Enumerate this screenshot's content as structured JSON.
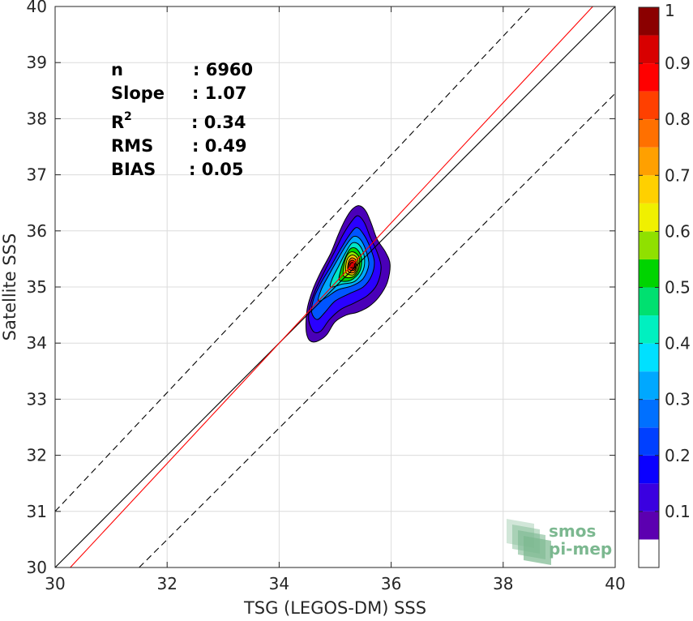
{
  "chart_data": {
    "type": "scatter",
    "xlabel": "TSG (LEGOS-DM) SSS",
    "ylabel": "Satellite SSS",
    "xlim": [
      30,
      40
    ],
    "ylim": [
      30,
      40
    ],
    "xticks": [
      30,
      32,
      34,
      36,
      38,
      40
    ],
    "yticks": [
      30,
      31,
      32,
      33,
      34,
      35,
      36,
      37,
      38,
      39,
      40
    ],
    "grid": true,
    "stats": [
      {
        "label": "n",
        "sup": "",
        "value": ": 6960"
      },
      {
        "label": "Slope",
        "sup": "",
        "value": ": 1.07"
      },
      {
        "label": "R",
        "sup": "2",
        "value": ": 0.34"
      },
      {
        "label": "RMS",
        "sup": "",
        "value": ": 0.49"
      },
      {
        "label": "BIAS",
        "sup": "",
        "value": ": 0.05"
      }
    ],
    "lines": [
      {
        "name": "identity",
        "color": "#000000",
        "style": "solid",
        "points": [
          [
            30,
            30
          ],
          [
            40,
            40
          ]
        ]
      },
      {
        "name": "regression",
        "color": "#ff0000",
        "style": "solid",
        "points": [
          [
            30.27,
            30
          ],
          [
            39.6,
            40
          ]
        ]
      },
      {
        "name": "upper-bound",
        "color": "#000000",
        "style": "dashed",
        "points": [
          [
            30,
            31
          ],
          [
            38.5,
            40
          ]
        ]
      },
      {
        "name": "lower-bound",
        "color": "#000000",
        "style": "dashed",
        "points": [
          [
            31.5,
            30
          ],
          [
            40,
            38.45
          ]
        ]
      }
    ],
    "density_contours": [
      {
        "level": 0.05,
        "color": "#4a00b8",
        "points": [
          [
            34.48,
            34.25
          ],
          [
            34.52,
            34.08
          ],
          [
            34.6,
            34.02
          ],
          [
            34.72,
            34.05
          ],
          [
            34.85,
            34.15
          ],
          [
            35.0,
            34.38
          ],
          [
            35.2,
            34.5
          ],
          [
            35.4,
            34.55
          ],
          [
            35.6,
            34.65
          ],
          [
            35.78,
            34.82
          ],
          [
            35.93,
            35.08
          ],
          [
            35.98,
            35.4
          ],
          [
            35.9,
            35.62
          ],
          [
            35.75,
            35.85
          ],
          [
            35.65,
            36.12
          ],
          [
            35.55,
            36.35
          ],
          [
            35.43,
            36.45
          ],
          [
            35.3,
            36.38
          ],
          [
            35.18,
            36.2
          ],
          [
            35.05,
            35.92
          ],
          [
            34.92,
            35.6
          ],
          [
            34.75,
            35.28
          ],
          [
            34.6,
            34.95
          ],
          [
            34.5,
            34.6
          ]
        ]
      },
      {
        "level": 0.1,
        "color": "#2a00ff",
        "points": [
          [
            34.53,
            34.4
          ],
          [
            34.62,
            34.2
          ],
          [
            34.75,
            34.22
          ],
          [
            34.9,
            34.42
          ],
          [
            35.1,
            34.6
          ],
          [
            35.35,
            34.72
          ],
          [
            35.58,
            34.85
          ],
          [
            35.75,
            35.05
          ],
          [
            35.82,
            35.35
          ],
          [
            35.75,
            35.62
          ],
          [
            35.63,
            35.88
          ],
          [
            35.52,
            36.15
          ],
          [
            35.4,
            36.27
          ],
          [
            35.28,
            36.15
          ],
          [
            35.15,
            35.95
          ],
          [
            35.0,
            35.65
          ],
          [
            34.82,
            35.3
          ],
          [
            34.65,
            34.95
          ],
          [
            34.55,
            34.65
          ]
        ]
      },
      {
        "level": 0.2,
        "color": "#0055ff",
        "points": [
          [
            34.58,
            34.55
          ],
          [
            34.68,
            34.42
          ],
          [
            34.82,
            34.55
          ],
          [
            35.0,
            34.75
          ],
          [
            35.25,
            34.88
          ],
          [
            35.5,
            35.0
          ],
          [
            35.65,
            35.2
          ],
          [
            35.7,
            35.45
          ],
          [
            35.62,
            35.72
          ],
          [
            35.5,
            35.95
          ],
          [
            35.38,
            36.06
          ],
          [
            35.25,
            35.92
          ],
          [
            35.1,
            35.68
          ],
          [
            34.93,
            35.38
          ],
          [
            34.75,
            35.08
          ],
          [
            34.62,
            34.8
          ]
        ]
      },
      {
        "level": 0.3,
        "color": "#00a8ff",
        "points": [
          [
            34.7,
            34.75
          ],
          [
            34.85,
            34.82
          ],
          [
            35.05,
            34.95
          ],
          [
            35.3,
            35.02
          ],
          [
            35.5,
            35.15
          ],
          [
            35.6,
            35.4
          ],
          [
            35.55,
            35.65
          ],
          [
            35.45,
            35.85
          ],
          [
            35.33,
            35.9
          ],
          [
            35.2,
            35.75
          ],
          [
            35.05,
            35.5
          ],
          [
            34.88,
            35.2
          ],
          [
            34.75,
            34.95
          ]
        ]
      },
      {
        "level": 0.4,
        "color": "#00e6c8",
        "points": [
          [
            34.92,
            35.0
          ],
          [
            35.12,
            35.05
          ],
          [
            35.35,
            35.1
          ],
          [
            35.5,
            35.3
          ],
          [
            35.52,
            35.55
          ],
          [
            35.43,
            35.75
          ],
          [
            35.3,
            35.78
          ],
          [
            35.18,
            35.6
          ],
          [
            35.05,
            35.35
          ],
          [
            34.95,
            35.15
          ]
        ]
      },
      {
        "level": 0.5,
        "color": "#00d400",
        "points": [
          [
            35.08,
            35.12
          ],
          [
            35.28,
            35.12
          ],
          [
            35.44,
            35.28
          ],
          [
            35.47,
            35.52
          ],
          [
            35.38,
            35.68
          ],
          [
            35.27,
            35.68
          ],
          [
            35.17,
            35.5
          ],
          [
            35.1,
            35.3
          ]
        ]
      },
      {
        "level": 0.6,
        "color": "#8fe600",
        "points": [
          [
            35.15,
            35.2
          ],
          [
            35.32,
            35.18
          ],
          [
            35.42,
            35.33
          ],
          [
            35.43,
            35.52
          ],
          [
            35.34,
            35.62
          ],
          [
            35.24,
            35.6
          ],
          [
            35.17,
            35.45
          ]
        ]
      },
      {
        "level": 0.7,
        "color": "#ffd400",
        "points": [
          [
            35.2,
            35.25
          ],
          [
            35.33,
            35.22
          ],
          [
            35.4,
            35.35
          ],
          [
            35.4,
            35.5
          ],
          [
            35.32,
            35.57
          ],
          [
            35.23,
            35.52
          ],
          [
            35.19,
            35.38
          ]
        ]
      },
      {
        "level": 0.8,
        "color": "#ff7a00",
        "points": [
          [
            35.23,
            35.28
          ],
          [
            35.34,
            35.26
          ],
          [
            35.38,
            35.38
          ],
          [
            35.37,
            35.48
          ],
          [
            35.3,
            35.52
          ],
          [
            35.24,
            35.45
          ]
        ]
      },
      {
        "level": 0.9,
        "color": "#ff1a00",
        "points": [
          [
            35.25,
            35.31
          ],
          [
            35.34,
            35.3
          ],
          [
            35.37,
            35.4
          ],
          [
            35.33,
            35.47
          ],
          [
            35.27,
            35.46
          ],
          [
            35.24,
            35.38
          ]
        ]
      },
      {
        "level": 1.0,
        "color": "#c00000",
        "points": [
          [
            35.27,
            35.35
          ],
          [
            35.33,
            35.34
          ],
          [
            35.35,
            35.4
          ],
          [
            35.31,
            35.44
          ],
          [
            35.27,
            35.41
          ]
        ]
      }
    ],
    "colorbar": {
      "ticks": [
        "0.1",
        "0.2",
        "0.3",
        "0.4",
        "0.5",
        "0.6",
        "0.7",
        "0.8",
        "0.9",
        "1"
      ],
      "range": [
        0,
        1
      ],
      "bins": [
        {
          "from": 0.0,
          "to": 0.05,
          "color": "#ffffff"
        },
        {
          "from": 0.05,
          "to": 0.1,
          "color": "#5c00b0"
        },
        {
          "from": 0.1,
          "to": 0.15,
          "color": "#3a00e0"
        },
        {
          "from": 0.15,
          "to": 0.2,
          "color": "#0a00ff"
        },
        {
          "from": 0.2,
          "to": 0.25,
          "color": "#0040ff"
        },
        {
          "from": 0.25,
          "to": 0.3,
          "color": "#0070ff"
        },
        {
          "from": 0.3,
          "to": 0.35,
          "color": "#00a8ff"
        },
        {
          "from": 0.35,
          "to": 0.4,
          "color": "#00e0ff"
        },
        {
          "from": 0.4,
          "to": 0.45,
          "color": "#00f0c0"
        },
        {
          "from": 0.45,
          "to": 0.5,
          "color": "#00e070"
        },
        {
          "from": 0.5,
          "to": 0.55,
          "color": "#00d400"
        },
        {
          "from": 0.55,
          "to": 0.6,
          "color": "#90e000"
        },
        {
          "from": 0.6,
          "to": 0.65,
          "color": "#f0f000"
        },
        {
          "from": 0.65,
          "to": 0.7,
          "color": "#ffd000"
        },
        {
          "from": 0.7,
          "to": 0.75,
          "color": "#ffa000"
        },
        {
          "from": 0.75,
          "to": 0.8,
          "color": "#ff7000"
        },
        {
          "from": 0.8,
          "to": 0.85,
          "color": "#ff4000"
        },
        {
          "from": 0.85,
          "to": 0.9,
          "color": "#ff0000"
        },
        {
          "from": 0.9,
          "to": 0.95,
          "color": "#d80000"
        },
        {
          "from": 0.95,
          "to": 1.0,
          "color": "#8b0000"
        }
      ]
    }
  },
  "watermark": {
    "line1": "smos",
    "line2": "pi-mep",
    "color": "#7cb890"
  }
}
